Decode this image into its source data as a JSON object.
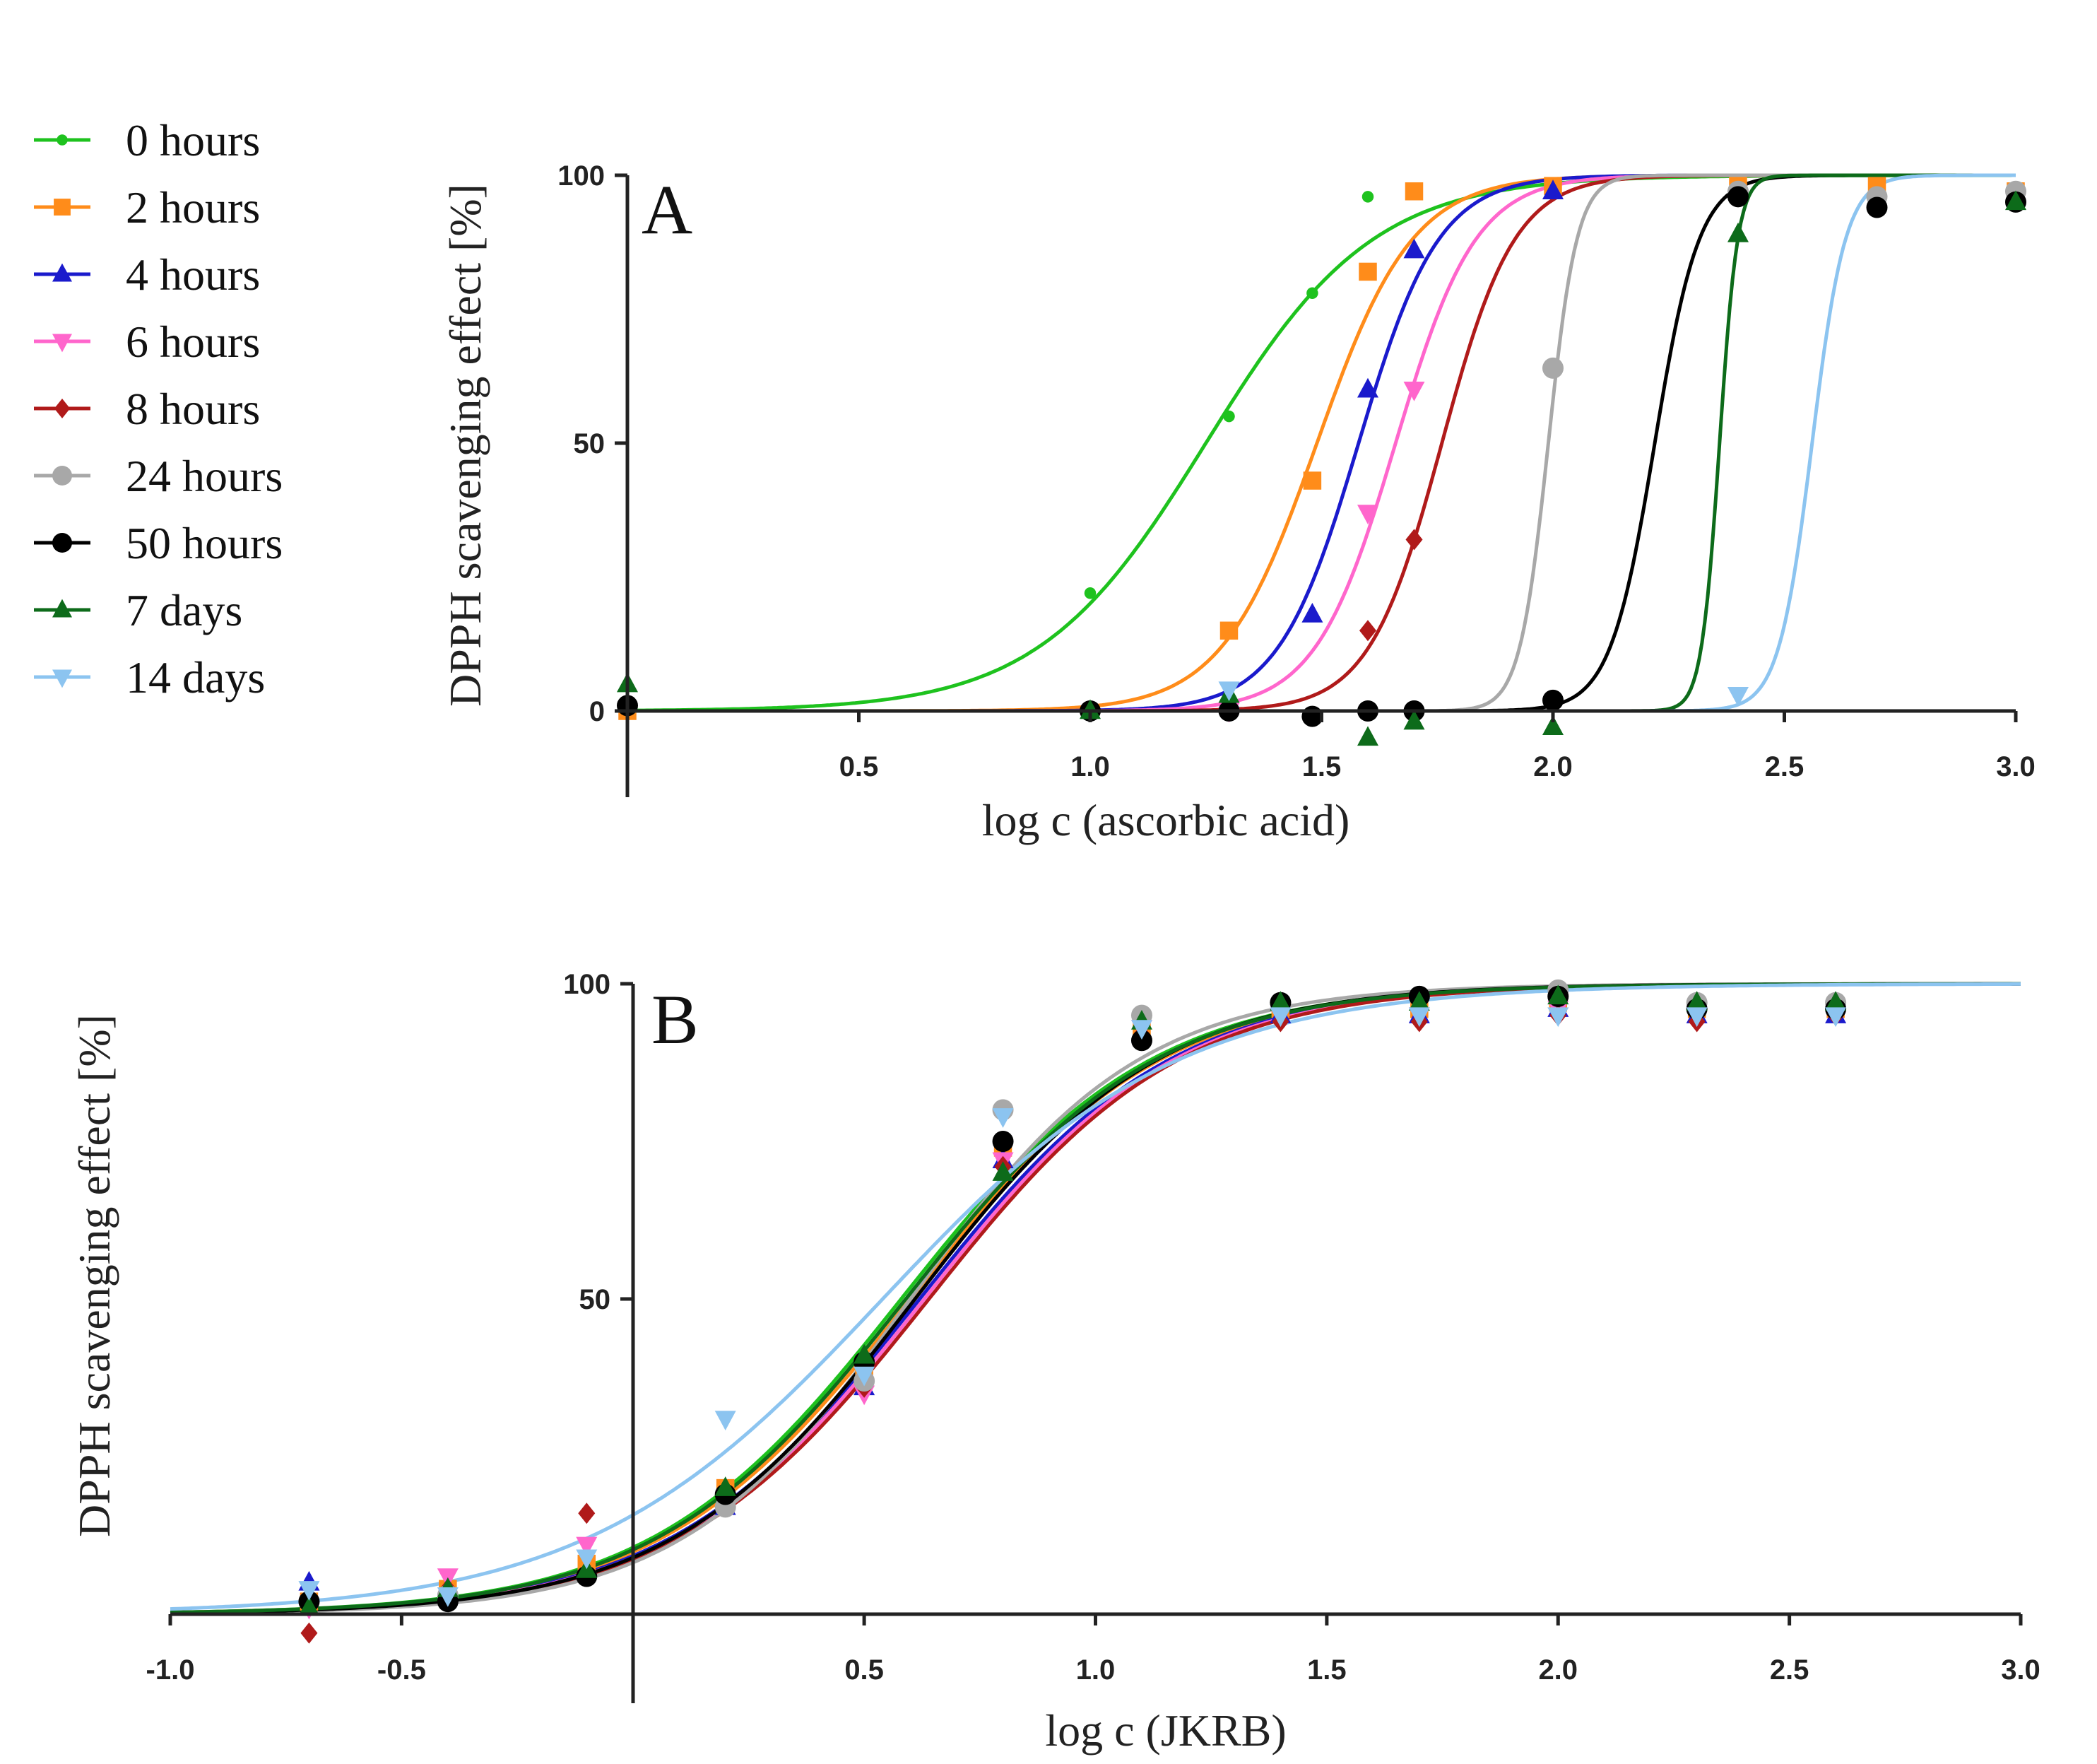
{
  "legend": [
    {
      "label": "0 hours",
      "color": "#1ec21e",
      "marker": "dot"
    },
    {
      "label": "2 hours",
      "color": "#ff8c1a",
      "marker": "square"
    },
    {
      "label": "4 hours",
      "color": "#1a1acc",
      "marker": "triangle-up"
    },
    {
      "label": "6 hours",
      "color": "#ff66cc",
      "marker": "triangle-down"
    },
    {
      "label": "8 hours",
      "color": "#b01a1a",
      "marker": "diamond"
    },
    {
      "label": "24 hours",
      "color": "#a8a8a8",
      "marker": "circle"
    },
    {
      "label": "50 hours",
      "color": "#000000",
      "marker": "circle"
    },
    {
      "label": "7 days",
      "color": "#0d6b1a",
      "marker": "triangle-up"
    },
    {
      "label": "14 days",
      "color": "#8cc4f0",
      "marker": "triangle-down"
    }
  ],
  "chart_data": [
    {
      "panel": "A",
      "type": "scatter",
      "title": "",
      "xlabel": "log c (ascorbic acid)",
      "ylabel": "DPPH scavenging effect [%]",
      "xlim": [
        0,
        3.0
      ],
      "ylim": [
        -15,
        100
      ],
      "x_ticks": [
        "0.5",
        "1.0",
        "1.5",
        "2.0",
        "2.5",
        "3.0"
      ],
      "x_tick_values": [
        0.5,
        1.0,
        1.5,
        2.0,
        2.5,
        3.0
      ],
      "y_ticks": [
        "0",
        "50",
        "100"
      ],
      "y_tick_values": [
        0,
        50,
        100
      ],
      "series": [
        {
          "name": "0 hours",
          "ec50": 1.25,
          "hill": 2.4,
          "x": [
            0,
            1.0,
            1.3,
            1.48,
            1.6,
            1.7
          ],
          "values": [
            0,
            22,
            55,
            78,
            96,
            97
          ]
        },
        {
          "name": "2 hours",
          "ec50": 1.49,
          "hill": 4.2,
          "x": [
            0,
            1.3,
            1.48,
            1.6,
            1.7,
            2.0,
            2.4,
            2.7,
            3.0
          ],
          "values": [
            0,
            15,
            43,
            82,
            97,
            98,
            98,
            98,
            97
          ]
        },
        {
          "name": "4 hours",
          "ec50": 1.58,
          "hill": 5.0,
          "x": [
            1.3,
            1.48,
            1.6,
            1.7,
            2.0
          ],
          "values": [
            2,
            18,
            60,
            86,
            97
          ]
        },
        {
          "name": "6 hours",
          "ec50": 1.66,
          "hill": 5.0,
          "x": [
            1.3,
            1.6,
            1.7
          ],
          "values": [
            0,
            37,
            60
          ]
        },
        {
          "name": "8 hours",
          "ec50": 1.76,
          "hill": 5.5,
          "x": [
            1.6,
            1.7
          ],
          "values": [
            15,
            32
          ]
        },
        {
          "name": "24 hours",
          "ec50": 1.99,
          "hill": 14,
          "x": [
            1.3,
            1.7,
            2.0,
            2.4,
            2.7,
            3.0
          ],
          "values": [
            0,
            0,
            64,
            97,
            96,
            97
          ]
        },
        {
          "name": "50 hours",
          "ec50": 2.22,
          "hill": 9,
          "x": [
            0,
            1.0,
            1.3,
            1.48,
            1.6,
            1.7,
            2.0,
            2.4,
            2.7,
            3.0
          ],
          "values": [
            1,
            0,
            0,
            -1,
            0,
            0,
            2,
            96,
            94,
            95
          ]
        },
        {
          "name": "7 days",
          "ec50": 2.36,
          "hill": 22,
          "x": [
            0,
            1.0,
            1.3,
            1.6,
            1.7,
            2.0,
            2.4,
            3.0
          ],
          "values": [
            5,
            0,
            3,
            -5,
            -2,
            -3,
            89,
            95
          ]
        },
        {
          "name": "14 days",
          "ec50": 2.56,
          "hill": 12,
          "x": [
            1.3,
            2.4
          ],
          "values": [
            4,
            3
          ]
        }
      ]
    },
    {
      "panel": "B",
      "type": "scatter",
      "title": "",
      "xlabel": "log c (JKRB)",
      "ylabel": "DPPH scavenging effect [%]",
      "xlim": [
        -1.0,
        3.0
      ],
      "ylim": [
        -15,
        100
      ],
      "x_ticks": [
        "-1.0",
        "-0.5",
        "0.5",
        "1.0",
        "1.5",
        "2.0",
        "2.5",
        "3.0"
      ],
      "x_tick_values": [
        -1.0,
        -0.5,
        0.5,
        1.0,
        1.5,
        2.0,
        2.5,
        3.0
      ],
      "y_ticks": [
        "50",
        "100"
      ],
      "y_tick_values": [
        50,
        100
      ],
      "series": [
        {
          "name": "0 hours",
          "ec50": 0.58,
          "hill": 1.6,
          "x": [
            -0.7,
            -0.4,
            -0.1,
            0.2,
            0.5,
            0.8,
            1.1,
            1.4,
            1.7,
            2.0,
            2.3,
            2.6
          ],
          "values": [
            1,
            3,
            7,
            19,
            39,
            73,
            95,
            97,
            97,
            97,
            96,
            97
          ]
        },
        {
          "name": "2 hours",
          "ec50": 0.6,
          "hill": 1.6,
          "x": [
            -0.7,
            -0.4,
            -0.1,
            0.2,
            0.5,
            0.8,
            1.1,
            1.4,
            1.7,
            2.0,
            2.3,
            2.6
          ],
          "values": [
            2,
            4,
            8,
            20,
            38,
            74,
            93,
            96,
            96,
            97,
            96,
            96
          ]
        },
        {
          "name": "4 hours",
          "ec50": 0.62,
          "hill": 1.6,
          "x": [
            -0.7,
            -0.4,
            -0.1,
            0.2,
            0.5,
            0.8,
            1.1,
            1.4,
            1.7,
            2.0,
            2.3,
            2.6
          ],
          "values": [
            5,
            3,
            7,
            17,
            36,
            72,
            92,
            95,
            95,
            96,
            95,
            95
          ]
        },
        {
          "name": "6 hours",
          "ec50": 0.63,
          "hill": 1.6,
          "x": [
            -0.7,
            -0.4,
            -0.1,
            0.2,
            0.5,
            0.8,
            1.1,
            1.4,
            1.7,
            2.0,
            2.3,
            2.6
          ],
          "values": [
            1,
            6,
            11,
            18,
            35,
            72,
            93,
            95,
            95,
            96,
            95,
            96
          ]
        },
        {
          "name": "8 hours",
          "ec50": 0.64,
          "hill": 1.6,
          "x": [
            -0.7,
            -0.4,
            -0.1,
            0.2,
            0.5,
            0.8,
            1.1,
            1.4,
            1.7,
            2.0,
            2.3,
            2.6
          ],
          "values": [
            -3,
            4,
            16,
            18,
            36,
            71,
            92,
            94,
            94,
            95,
            94,
            95
          ]
        },
        {
          "name": "24 hours",
          "ec50": 0.6,
          "hill": 1.75,
          "x": [
            -0.7,
            -0.4,
            -0.1,
            0.2,
            0.5,
            0.8,
            1.1,
            1.4,
            1.7,
            2.0,
            2.3,
            2.6
          ],
          "values": [
            2,
            3,
            6,
            17,
            37,
            80,
            95,
            97,
            98,
            99,
            97,
            97
          ]
        },
        {
          "name": "50 hours",
          "ec50": 0.61,
          "hill": 1.65,
          "x": [
            -0.7,
            -0.4,
            -0.1,
            0.2,
            0.5,
            0.8,
            1.1,
            1.4,
            1.7,
            2.0,
            2.3,
            2.6
          ],
          "values": [
            2,
            2,
            6,
            19,
            40,
            75,
            91,
            97,
            98,
            98,
            96,
            96
          ]
        },
        {
          "name": "7 days",
          "ec50": 0.59,
          "hill": 1.6,
          "x": [
            -0.7,
            -0.4,
            -0.1,
            0.2,
            0.5,
            0.8,
            1.1,
            1.4,
            1.7,
            2.0,
            2.3,
            2.6
          ],
          "values": [
            1,
            4,
            7,
            20,
            41,
            70,
            94,
            97,
            97,
            98,
            97,
            97
          ]
        },
        {
          "name": "14 days",
          "ec50": 0.54,
          "hill": 1.35,
          "x": [
            -0.7,
            -0.4,
            -0.1,
            0.2,
            0.5,
            0.8,
            1.1,
            1.4,
            1.7,
            2.0,
            2.3,
            2.6
          ],
          "values": [
            4,
            3,
            9,
            31,
            38,
            79,
            93,
            95,
            95,
            95,
            95,
            95
          ]
        }
      ]
    }
  ]
}
